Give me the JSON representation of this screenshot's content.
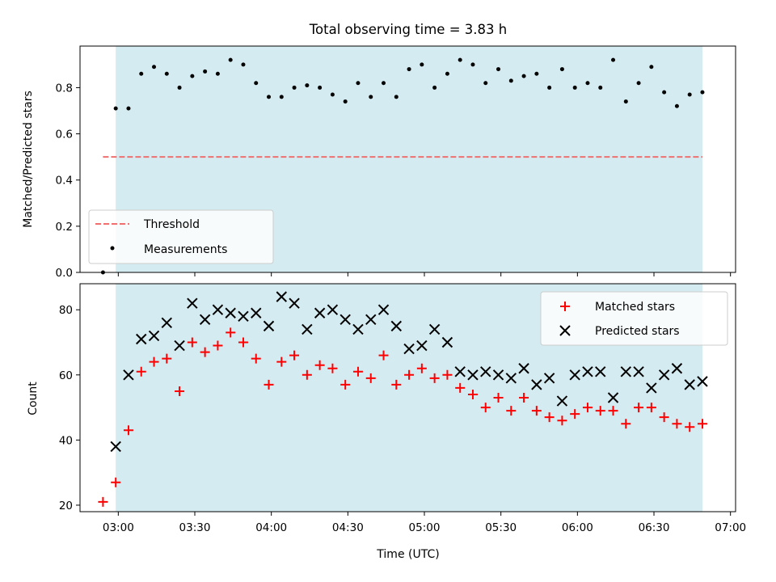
{
  "chart_data": [
    {
      "type": "scatter",
      "title": "Total observing time = 3.83 h",
      "xlabel": "",
      "ylabel": "Matched/Predicted stars",
      "ylim": [
        0,
        0.98
      ],
      "yticks": [
        "0.0",
        "0.2",
        "0.4",
        "0.6",
        "0.8"
      ],
      "shaded_span": {
        "start": "02:59",
        "end": "06:49",
        "color": "#d4ebf1"
      },
      "threshold": {
        "name": "Threshold",
        "value": 0.5,
        "start": "02:54",
        "end": "06:49",
        "color": "#f07070"
      },
      "legend": {
        "placement": "lower left",
        "entries": [
          "Threshold",
          "Measurements"
        ]
      },
      "series": [
        {
          "name": "Measurements",
          "color": "#000000",
          "marker": "dot",
          "x": [
            "02:54",
            "02:59",
            "03:04",
            "03:09",
            "03:14",
            "03:19",
            "03:24",
            "03:29",
            "03:34",
            "03:39",
            "03:44",
            "03:49",
            "03:54",
            "03:59",
            "04:04",
            "04:09",
            "04:14",
            "04:19",
            "04:24",
            "04:29",
            "04:34",
            "04:39",
            "04:44",
            "04:49",
            "04:54",
            "04:59",
            "05:04",
            "05:09",
            "05:14",
            "05:19",
            "05:24",
            "05:29",
            "05:34",
            "05:39",
            "05:44",
            "05:49",
            "05:54",
            "05:59",
            "06:04",
            "06:09",
            "06:14",
            "06:19",
            "06:24",
            "06:29",
            "06:34",
            "06:39",
            "06:44",
            "06:49"
          ],
          "y": [
            0.0,
            0.71,
            0.71,
            0.86,
            0.89,
            0.86,
            0.8,
            0.85,
            0.87,
            0.86,
            0.92,
            0.9,
            0.82,
            0.76,
            0.76,
            0.8,
            0.81,
            0.8,
            0.77,
            0.74,
            0.82,
            0.76,
            0.82,
            0.76,
            0.88,
            0.9,
            0.8,
            0.86,
            0.92,
            0.9,
            0.82,
            0.88,
            0.83,
            0.85,
            0.86,
            0.8,
            0.88,
            0.8,
            0.82,
            0.8,
            0.92,
            0.74,
            0.82,
            0.89,
            0.78,
            0.72,
            0.77,
            0.78
          ]
        }
      ]
    },
    {
      "type": "scatter",
      "title": "",
      "xlabel": "Time (UTC)",
      "ylabel": "Count",
      "ylim": [
        18,
        88
      ],
      "yticks": [
        "20",
        "40",
        "60",
        "80"
      ],
      "xlim": [
        "02:45",
        "07:02"
      ],
      "xticks": [
        "03:00",
        "03:30",
        "04:00",
        "04:30",
        "05:00",
        "05:30",
        "06:00",
        "06:30",
        "07:00"
      ],
      "shaded_span": {
        "start": "02:59",
        "end": "06:49",
        "color": "#d4ebf1"
      },
      "legend": {
        "placement": "upper right",
        "entries": [
          "Matched stars",
          "Predicted stars"
        ]
      },
      "series": [
        {
          "name": "Matched stars",
          "color": "#ff0000",
          "marker": "plus",
          "x": [
            "02:54",
            "02:59",
            "03:04",
            "03:09",
            "03:14",
            "03:19",
            "03:24",
            "03:29",
            "03:34",
            "03:39",
            "03:44",
            "03:49",
            "03:54",
            "03:59",
            "04:04",
            "04:09",
            "04:14",
            "04:19",
            "04:24",
            "04:29",
            "04:34",
            "04:39",
            "04:44",
            "04:49",
            "04:54",
            "04:59",
            "05:04",
            "05:09",
            "05:14",
            "05:19",
            "05:24",
            "05:29",
            "05:34",
            "05:39",
            "05:44",
            "05:49",
            "05:54",
            "05:59",
            "06:04",
            "06:09",
            "06:14",
            "06:19",
            "06:24",
            "06:29",
            "06:34",
            "06:39",
            "06:44",
            "06:49"
          ],
          "y": [
            21,
            27,
            43,
            61,
            64,
            65,
            55,
            70,
            67,
            69,
            73,
            70,
            65,
            57,
            64,
            66,
            60,
            63,
            62,
            57,
            61,
            59,
            66,
            57,
            60,
            62,
            59,
            60,
            56,
            54,
            50,
            53,
            49,
            53,
            49,
            47,
            46,
            48,
            50,
            49,
            49,
            45,
            50,
            50,
            47,
            45,
            44,
            45
          ]
        },
        {
          "name": "Predicted stars",
          "color": "#000000",
          "marker": "x",
          "x": [
            "02:59",
            "03:04",
            "03:09",
            "03:14",
            "03:19",
            "03:24",
            "03:29",
            "03:34",
            "03:39",
            "03:44",
            "03:49",
            "03:54",
            "03:59",
            "04:04",
            "04:09",
            "04:14",
            "04:19",
            "04:24",
            "04:29",
            "04:34",
            "04:39",
            "04:44",
            "04:49",
            "04:54",
            "04:59",
            "05:04",
            "05:09",
            "05:14",
            "05:19",
            "05:24",
            "05:29",
            "05:34",
            "05:39",
            "05:44",
            "05:49",
            "05:54",
            "05:59",
            "06:04",
            "06:09",
            "06:14",
            "06:19",
            "06:24",
            "06:29",
            "06:34",
            "06:39",
            "06:44",
            "06:49"
          ],
          "y": [
            38,
            60,
            71,
            72,
            76,
            69,
            82,
            77,
            80,
            79,
            78,
            79,
            75,
            84,
            82,
            74,
            79,
            80,
            77,
            74,
            77,
            80,
            75,
            68,
            69,
            74,
            70,
            61,
            60,
            61,
            60,
            59,
            62,
            57,
            59,
            52,
            60,
            61,
            61,
            53,
            61,
            61,
            56,
            60,
            62,
            57,
            58
          ]
        }
      ]
    }
  ]
}
